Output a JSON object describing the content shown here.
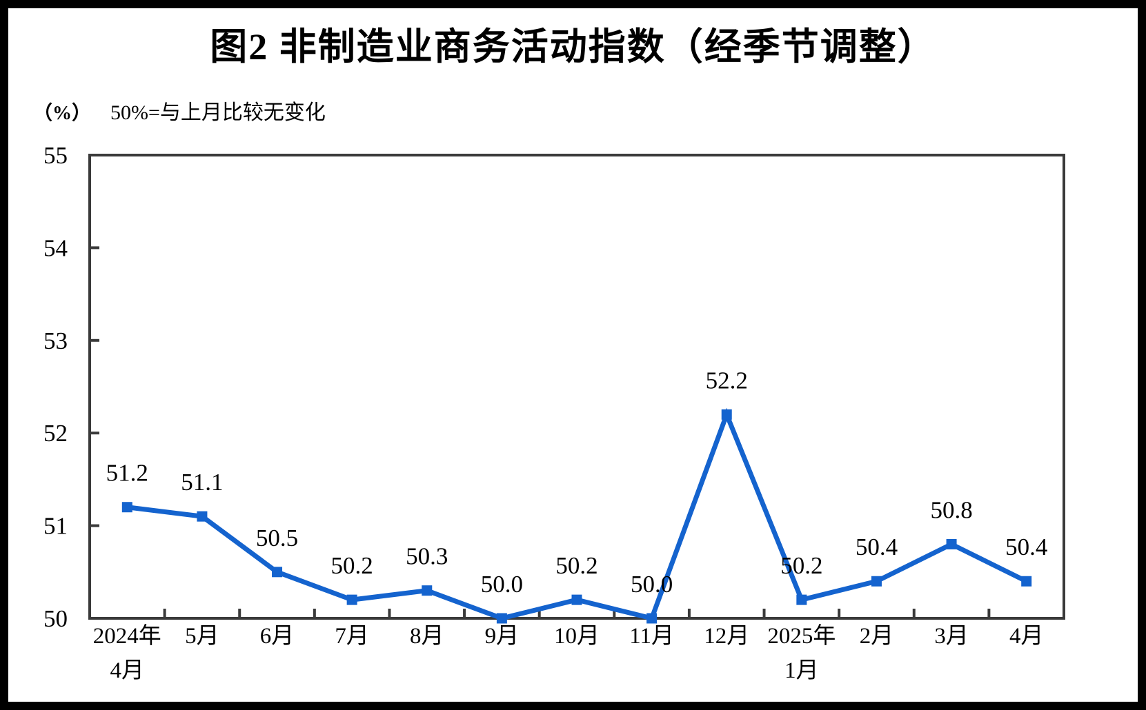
{
  "page": {
    "title": "图2 非制造业商务活动指数（经季节调整）",
    "unit_label": "（%）",
    "subtitle": "50%=与上月比较无变化"
  },
  "colors": {
    "line": "#1463CE",
    "axis": "#3a3a3a",
    "text": "#000000"
  },
  "chart_data": {
    "type": "line",
    "title": "图2 非制造业商务活动指数（经季节调整）",
    "ylabel": "（%）",
    "note": "50%=与上月比较无变化",
    "categories": [
      [
        "2024年",
        "4月"
      ],
      [
        "5月"
      ],
      [
        "6月"
      ],
      [
        "7月"
      ],
      [
        "8月"
      ],
      [
        "9月"
      ],
      [
        "10月"
      ],
      [
        "11月"
      ],
      [
        "12月"
      ],
      [
        "2025年",
        "1月"
      ],
      [
        "2月"
      ],
      [
        "3月"
      ],
      [
        "4月"
      ]
    ],
    "values": [
      51.2,
      51.1,
      50.5,
      50.2,
      50.3,
      50.0,
      50.2,
      50.0,
      52.2,
      50.2,
      50.4,
      50.8,
      50.4
    ],
    "data_labels": [
      "51.2",
      "51.1",
      "50.5",
      "50.2",
      "50.3",
      "50.0",
      "50.2",
      "50.0",
      "52.2",
      "50.2",
      "50.4",
      "50.8",
      "50.4"
    ],
    "ylim": [
      50,
      55
    ],
    "yticks": [
      50,
      51,
      52,
      53,
      54,
      55
    ],
    "grid": false,
    "legend": "none",
    "marker": "square",
    "tick_style": "inward"
  }
}
